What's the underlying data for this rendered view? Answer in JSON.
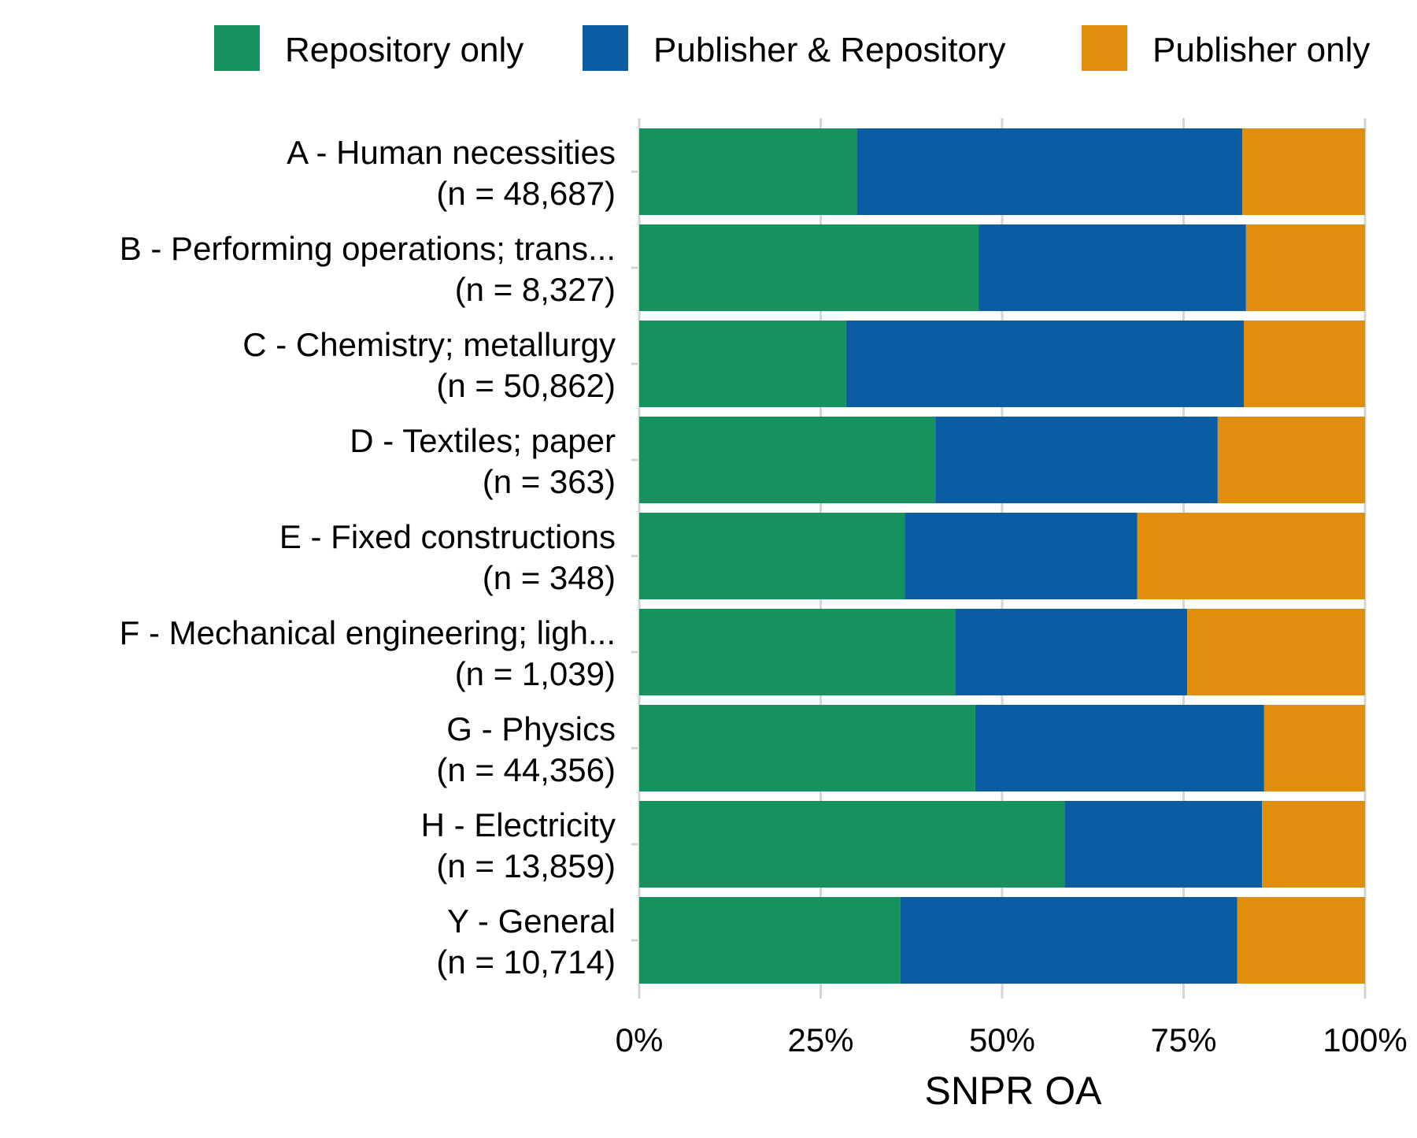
{
  "chart_data": {
    "type": "bar",
    "orientation": "horizontal",
    "stacked": true,
    "title": "",
    "xlabel": "SNPR OA",
    "ylabel": "",
    "xlim": [
      0,
      100
    ],
    "x_ticks": [
      "0%",
      "25%",
      "50%",
      "75%",
      "100%"
    ],
    "x_tick_values": [
      0,
      25,
      50,
      75,
      100
    ],
    "grid": "vertical",
    "legend_position": "top",
    "categories": [
      {
        "name": "A - Human necessities",
        "n": "(n = 48,687)"
      },
      {
        "name": "B - Performing operations; trans...",
        "n": "(n = 8,327)"
      },
      {
        "name": "C - Chemistry; metallurgy",
        "n": "(n = 50,862)"
      },
      {
        "name": "D - Textiles; paper",
        "n": "(n = 363)"
      },
      {
        "name": "E - Fixed constructions",
        "n": "(n = 348)"
      },
      {
        "name": "F - Mechanical engineering; ligh...",
        "n": "(n = 1,039)"
      },
      {
        "name": "G - Physics",
        "n": "(n = 44,356)"
      },
      {
        "name": "H - Electricity",
        "n": "(n = 13,859)"
      },
      {
        "name": "Y - General",
        "n": "(n = 10,714)"
      }
    ],
    "series": [
      {
        "name": "Repository only",
        "color": "#16925f",
        "values": [
          30.0,
          46.8,
          28.5,
          40.8,
          36.6,
          43.6,
          46.3,
          58.6,
          36.0
        ]
      },
      {
        "name": "Publisher & Repository",
        "color": "#0a5da3",
        "values": [
          53.1,
          36.8,
          54.8,
          38.9,
          32.0,
          31.9,
          39.8,
          27.2,
          46.4
        ]
      },
      {
        "name": "Publisher only",
        "color": "#e08e0b",
        "values": [
          16.9,
          16.4,
          16.7,
          20.3,
          31.4,
          24.5,
          13.9,
          14.2,
          17.6
        ]
      }
    ]
  }
}
